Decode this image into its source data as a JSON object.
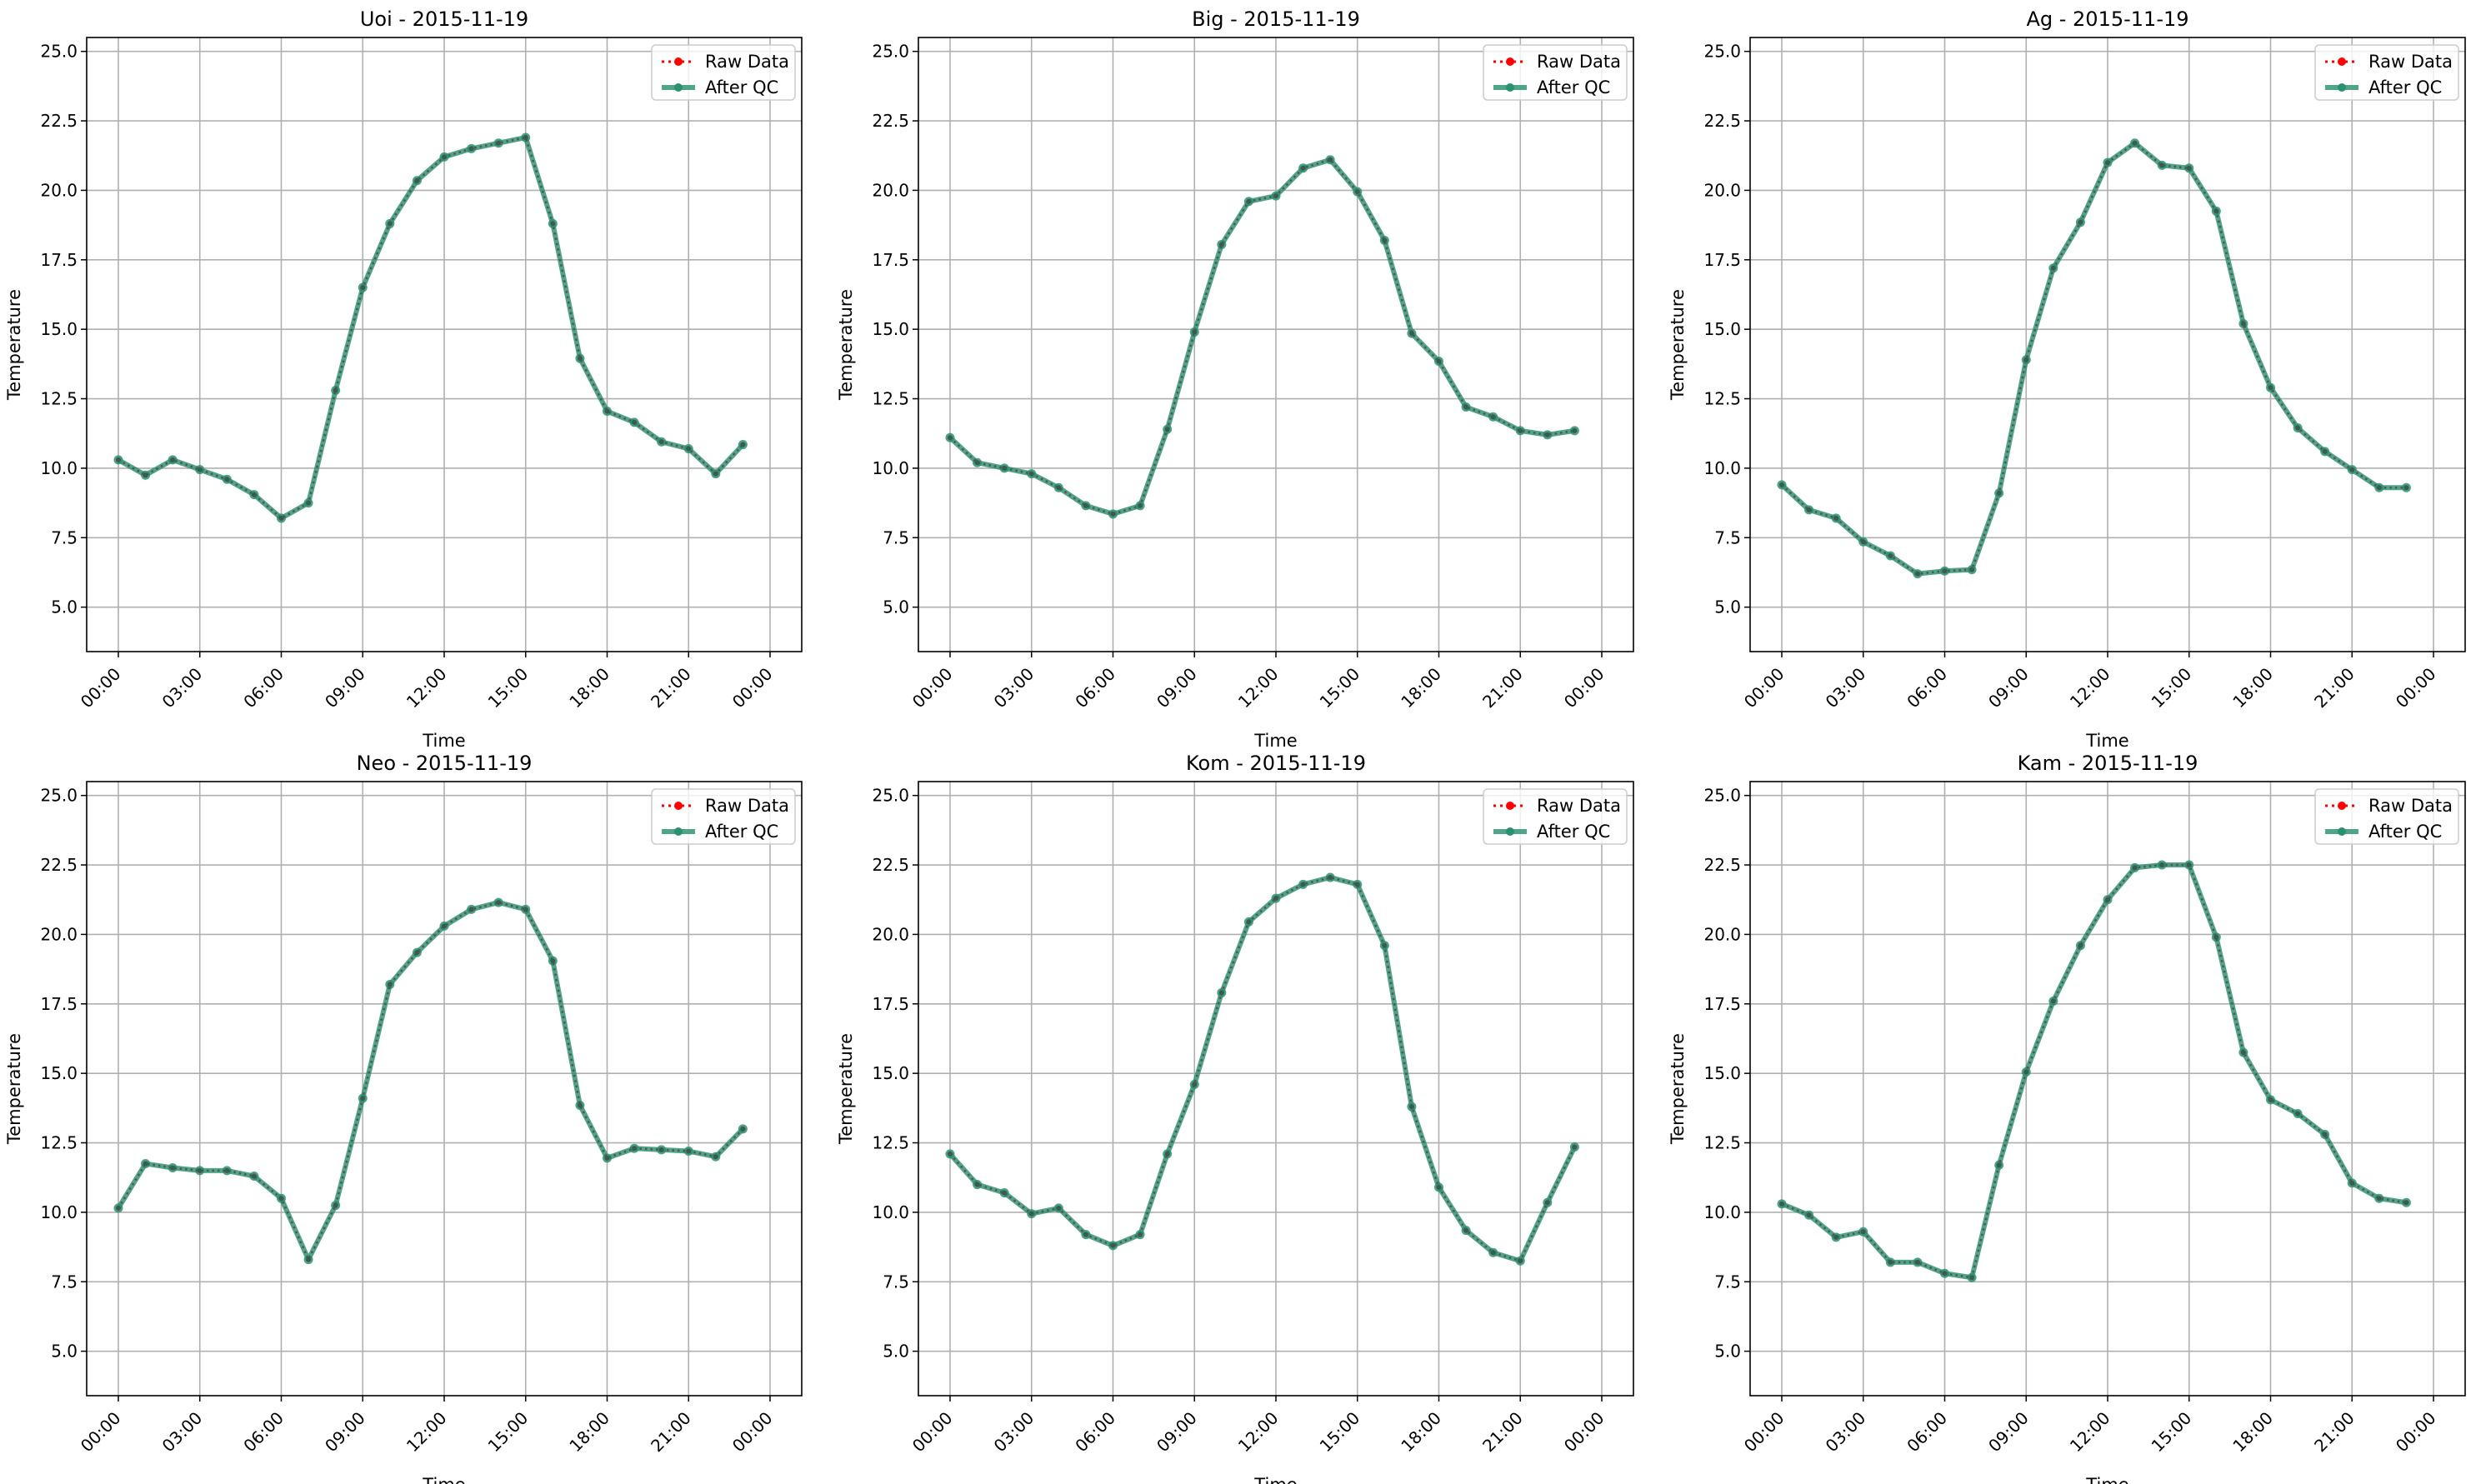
{
  "chart_data": [
    {
      "type": "line",
      "title": "Uoi - 2015-11-19",
      "xlabel": "Time",
      "ylabel": "Temperature",
      "x_tick_labels": [
        "00:00",
        "03:00",
        "06:00",
        "09:00",
        "12:00",
        "15:00",
        "18:00",
        "21:00",
        "00:00"
      ],
      "y_tick_labels": [
        "5.0",
        "7.5",
        "10.0",
        "12.5",
        "15.0",
        "17.5",
        "20.0",
        "22.5",
        "25.0"
      ],
      "xlim": [
        "00:00",
        "24:00"
      ],
      "ylim": [
        3.4,
        25.5
      ],
      "grid": true,
      "legend": "top-right",
      "x": [
        "00:00",
        "01:00",
        "02:00",
        "03:00",
        "04:00",
        "05:00",
        "06:00",
        "07:00",
        "08:00",
        "09:00",
        "10:00",
        "11:00",
        "12:00",
        "13:00",
        "14:00",
        "15:00",
        "16:00",
        "17:00",
        "18:00",
        "19:00",
        "20:00",
        "21:00",
        "22:00",
        "23:00"
      ],
      "series": [
        {
          "name": "Raw Data",
          "color": "#ff0000",
          "style": "dotted",
          "values": [
            10.3,
            9.75,
            10.3,
            9.95,
            9.6,
            9.05,
            8.2,
            8.75,
            12.8,
            16.5,
            18.8,
            20.35,
            21.2,
            21.5,
            21.7,
            21.9,
            18.8,
            13.95,
            12.05,
            11.65,
            10.95,
            10.7,
            9.8,
            10.85
          ]
        },
        {
          "name": "After QC",
          "color": "#2a9070",
          "style": "solid",
          "values": [
            10.3,
            9.75,
            10.3,
            9.95,
            9.6,
            9.05,
            8.2,
            8.75,
            12.8,
            16.5,
            18.8,
            20.35,
            21.2,
            21.5,
            21.7,
            21.9,
            18.8,
            13.95,
            12.05,
            11.65,
            10.95,
            10.7,
            9.8,
            10.85
          ]
        }
      ]
    },
    {
      "type": "line",
      "title": "Big - 2015-11-19",
      "xlabel": "Time",
      "ylabel": "Temperature",
      "x_tick_labels": [
        "00:00",
        "03:00",
        "06:00",
        "09:00",
        "12:00",
        "15:00",
        "18:00",
        "21:00",
        "00:00"
      ],
      "y_tick_labels": [
        "5.0",
        "7.5",
        "10.0",
        "12.5",
        "15.0",
        "17.5",
        "20.0",
        "22.5",
        "25.0"
      ],
      "xlim": [
        "00:00",
        "24:00"
      ],
      "ylim": [
        3.4,
        25.5
      ],
      "grid": true,
      "legend": "top-right",
      "x": [
        "00:00",
        "01:00",
        "02:00",
        "03:00",
        "04:00",
        "05:00",
        "06:00",
        "07:00",
        "08:00",
        "09:00",
        "10:00",
        "11:00",
        "12:00",
        "13:00",
        "14:00",
        "15:00",
        "16:00",
        "17:00",
        "18:00",
        "19:00",
        "20:00",
        "21:00",
        "22:00",
        "23:00"
      ],
      "series": [
        {
          "name": "Raw Data",
          "color": "#ff0000",
          "style": "dotted",
          "values": [
            11.1,
            10.2,
            10.0,
            9.8,
            9.3,
            8.65,
            8.35,
            8.65,
            11.4,
            14.9,
            18.05,
            19.6,
            19.8,
            20.8,
            21.1,
            19.95,
            18.2,
            14.85,
            13.85,
            12.2,
            11.85,
            11.35,
            11.2,
            11.35
          ]
        },
        {
          "name": "After QC",
          "color": "#2a9070",
          "style": "solid",
          "values": [
            11.1,
            10.2,
            10.0,
            9.8,
            9.3,
            8.65,
            8.35,
            8.65,
            11.4,
            14.9,
            18.05,
            19.6,
            19.8,
            20.8,
            21.1,
            19.95,
            18.2,
            14.85,
            13.85,
            12.2,
            11.85,
            11.35,
            11.2,
            11.35
          ]
        }
      ]
    },
    {
      "type": "line",
      "title": "Ag - 2015-11-19",
      "xlabel": "Time",
      "ylabel": "Temperature",
      "x_tick_labels": [
        "00:00",
        "03:00",
        "06:00",
        "09:00",
        "12:00",
        "15:00",
        "18:00",
        "21:00",
        "00:00"
      ],
      "y_tick_labels": [
        "5.0",
        "7.5",
        "10.0",
        "12.5",
        "15.0",
        "17.5",
        "20.0",
        "22.5",
        "25.0"
      ],
      "xlim": [
        "00:00",
        "24:00"
      ],
      "ylim": [
        3.4,
        25.5
      ],
      "grid": true,
      "legend": "top-right",
      "x": [
        "00:00",
        "01:00",
        "02:00",
        "03:00",
        "04:00",
        "05:00",
        "06:00",
        "07:00",
        "08:00",
        "09:00",
        "10:00",
        "11:00",
        "12:00",
        "13:00",
        "14:00",
        "15:00",
        "16:00",
        "17:00",
        "18:00",
        "19:00",
        "20:00",
        "21:00",
        "22:00",
        "23:00"
      ],
      "series": [
        {
          "name": "Raw Data",
          "color": "#ff0000",
          "style": "dotted",
          "values": [
            9.4,
            8.5,
            8.2,
            7.35,
            6.85,
            6.2,
            6.3,
            6.35,
            9.1,
            13.9,
            17.2,
            18.85,
            21.0,
            21.7,
            20.9,
            20.8,
            19.25,
            15.2,
            12.9,
            11.45,
            10.6,
            9.95,
            9.3,
            9.3
          ]
        },
        {
          "name": "After QC",
          "color": "#2a9070",
          "style": "solid",
          "values": [
            9.4,
            8.5,
            8.2,
            7.35,
            6.85,
            6.2,
            6.3,
            6.35,
            9.1,
            13.9,
            17.2,
            18.85,
            21.0,
            21.7,
            20.9,
            20.8,
            19.25,
            15.2,
            12.9,
            11.45,
            10.6,
            9.95,
            9.3,
            9.3
          ]
        }
      ]
    },
    {
      "type": "line",
      "title": "Neo - 2015-11-19",
      "xlabel": "Time",
      "ylabel": "Temperature",
      "x_tick_labels": [
        "00:00",
        "03:00",
        "06:00",
        "09:00",
        "12:00",
        "15:00",
        "18:00",
        "21:00",
        "00:00"
      ],
      "y_tick_labels": [
        "5.0",
        "7.5",
        "10.0",
        "12.5",
        "15.0",
        "17.5",
        "20.0",
        "22.5",
        "25.0"
      ],
      "xlim": [
        "00:00",
        "24:00"
      ],
      "ylim": [
        3.4,
        25.5
      ],
      "grid": true,
      "legend": "top-right",
      "x": [
        "00:00",
        "01:00",
        "02:00",
        "03:00",
        "04:00",
        "05:00",
        "06:00",
        "07:00",
        "08:00",
        "09:00",
        "10:00",
        "11:00",
        "12:00",
        "13:00",
        "14:00",
        "15:00",
        "16:00",
        "17:00",
        "18:00",
        "19:00",
        "20:00",
        "21:00",
        "22:00",
        "23:00"
      ],
      "series": [
        {
          "name": "Raw Data",
          "color": "#ff0000",
          "style": "dotted",
          "values": [
            10.15,
            11.75,
            11.6,
            11.5,
            11.5,
            11.3,
            10.5,
            8.3,
            10.25,
            14.1,
            18.2,
            19.35,
            20.3,
            20.9,
            21.15,
            20.9,
            19.05,
            13.85,
            11.95,
            12.3,
            12.25,
            12.2,
            12.0,
            13.0
          ]
        },
        {
          "name": "After QC",
          "color": "#2a9070",
          "style": "solid",
          "values": [
            10.15,
            11.75,
            11.6,
            11.5,
            11.5,
            11.3,
            10.5,
            8.3,
            10.25,
            14.1,
            18.2,
            19.35,
            20.3,
            20.9,
            21.15,
            20.9,
            19.05,
            13.85,
            11.95,
            12.3,
            12.25,
            12.2,
            12.0,
            13.0
          ]
        }
      ]
    },
    {
      "type": "line",
      "title": "Kom - 2015-11-19",
      "xlabel": "Time",
      "ylabel": "Temperature",
      "x_tick_labels": [
        "00:00",
        "03:00",
        "06:00",
        "09:00",
        "12:00",
        "15:00",
        "18:00",
        "21:00",
        "00:00"
      ],
      "y_tick_labels": [
        "5.0",
        "7.5",
        "10.0",
        "12.5",
        "15.0",
        "17.5",
        "20.0",
        "22.5",
        "25.0"
      ],
      "xlim": [
        "00:00",
        "24:00"
      ],
      "ylim": [
        3.4,
        25.5
      ],
      "grid": true,
      "legend": "top-right",
      "x": [
        "00:00",
        "01:00",
        "02:00",
        "03:00",
        "04:00",
        "05:00",
        "06:00",
        "07:00",
        "08:00",
        "09:00",
        "10:00",
        "11:00",
        "12:00",
        "13:00",
        "14:00",
        "15:00",
        "16:00",
        "17:00",
        "18:00",
        "19:00",
        "20:00",
        "21:00",
        "22:00",
        "23:00"
      ],
      "series": [
        {
          "name": "Raw Data",
          "color": "#ff0000",
          "style": "dotted",
          "values": [
            12.1,
            11.0,
            10.7,
            9.95,
            10.15,
            9.2,
            8.8,
            9.2,
            12.1,
            14.6,
            17.9,
            20.45,
            21.3,
            21.8,
            22.05,
            21.8,
            19.6,
            13.8,
            10.9,
            9.35,
            8.55,
            8.25,
            10.35,
            12.35
          ]
        },
        {
          "name": "After QC",
          "color": "#2a9070",
          "style": "solid",
          "values": [
            12.1,
            11.0,
            10.7,
            9.95,
            10.15,
            9.2,
            8.8,
            9.2,
            12.1,
            14.6,
            17.9,
            20.45,
            21.3,
            21.8,
            22.05,
            21.8,
            19.6,
            13.8,
            10.9,
            9.35,
            8.55,
            8.25,
            10.35,
            12.35
          ]
        }
      ]
    },
    {
      "type": "line",
      "title": "Kam - 2015-11-19",
      "xlabel": "Time",
      "ylabel": "Temperature",
      "x_tick_labels": [
        "00:00",
        "03:00",
        "06:00",
        "09:00",
        "12:00",
        "15:00",
        "18:00",
        "21:00",
        "00:00"
      ],
      "y_tick_labels": [
        "5.0",
        "7.5",
        "10.0",
        "12.5",
        "15.0",
        "17.5",
        "20.0",
        "22.5",
        "25.0"
      ],
      "xlim": [
        "00:00",
        "24:00"
      ],
      "ylim": [
        3.4,
        25.5
      ],
      "grid": true,
      "legend": "top-right",
      "x": [
        "00:00",
        "01:00",
        "02:00",
        "03:00",
        "04:00",
        "05:00",
        "06:00",
        "07:00",
        "08:00",
        "09:00",
        "10:00",
        "11:00",
        "12:00",
        "13:00",
        "14:00",
        "15:00",
        "16:00",
        "17:00",
        "18:00",
        "19:00",
        "20:00",
        "21:00",
        "22:00",
        "23:00"
      ],
      "series": [
        {
          "name": "Raw Data",
          "color": "#ff0000",
          "style": "dotted",
          "values": [
            10.3,
            9.9,
            9.1,
            9.3,
            8.2,
            8.2,
            7.8,
            7.65,
            11.7,
            15.05,
            17.6,
            19.6,
            21.25,
            22.4,
            22.5,
            22.5,
            19.9,
            15.75,
            14.05,
            13.55,
            12.8,
            11.05,
            10.5,
            10.35
          ]
        },
        {
          "name": "After QC",
          "color": "#2a9070",
          "style": "solid",
          "values": [
            10.3,
            9.9,
            9.1,
            9.3,
            8.2,
            8.2,
            7.8,
            7.65,
            11.7,
            15.05,
            17.6,
            19.6,
            21.25,
            22.4,
            22.5,
            22.5,
            19.9,
            15.75,
            14.05,
            13.55,
            12.8,
            11.05,
            10.5,
            10.35
          ]
        }
      ]
    }
  ]
}
